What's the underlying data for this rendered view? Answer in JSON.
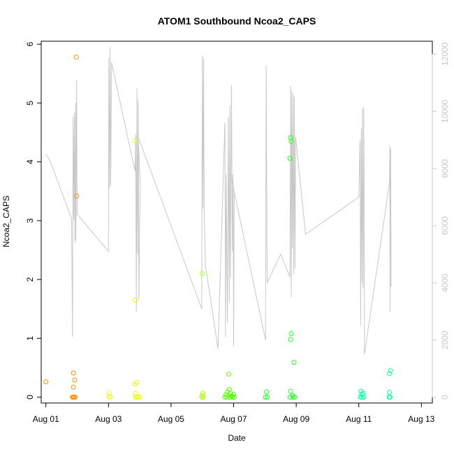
{
  "chart_data": {
    "type": "scatter",
    "title": "ATOM1 Southbound Ncoa2_CAPS",
    "xlabel": "Date",
    "ylabel": "Ncoa2_CAPS",
    "xlim": [
      -0.15,
      12.35
    ],
    "ylim": [
      -0.1,
      6.05
    ],
    "y_ticks": [
      0,
      1,
      2,
      3,
      4,
      5,
      6
    ],
    "x_ticks": [
      {
        "value": 0,
        "label": "Aug 01"
      },
      {
        "value": 2,
        "label": "Aug 03"
      },
      {
        "value": 4,
        "label": "Aug 05"
      },
      {
        "value": 6,
        "label": "Aug 07"
      },
      {
        "value": 8,
        "label": "Aug 09"
      },
      {
        "value": 10,
        "label": "Aug 11"
      },
      {
        "value": 12,
        "label": "Aug 13"
      }
    ],
    "secondary_axis": {
      "ylim": [
        -200,
        12450
      ],
      "ticks": [
        0,
        2000,
        4000,
        6000,
        8000,
        10000,
        12000
      ],
      "color": "#c8c8c8"
    },
    "grid": false,
    "series": [
      {
        "color": "#ff8c00",
        "points": [
          [
            0.0,
            0.26
          ],
          [
            0.88,
            0.41
          ],
          [
            0.88,
            0.17
          ],
          [
            0.92,
            0.29
          ],
          [
            0.97,
            5.78
          ],
          [
            0.98,
            3.42
          ],
          [
            0.85,
            0.0
          ],
          [
            0.88,
            0.0
          ],
          [
            0.9,
            0.0
          ],
          [
            0.94,
            0.0
          ]
        ]
      },
      {
        "color": "#e6ff00",
        "points": [
          [
            2.02,
            0.08
          ],
          [
            2.02,
            0.01
          ],
          [
            2.05,
            0.0
          ],
          [
            2.84,
            4.36
          ],
          [
            2.85,
            1.65
          ],
          [
            2.84,
            0.22
          ],
          [
            2.86,
            0.06
          ],
          [
            2.91,
            0.25
          ],
          [
            2.87,
            0.0
          ],
          [
            2.92,
            0.0
          ],
          [
            2.96,
            0.0
          ],
          [
            3.0,
            0.0
          ]
        ]
      },
      {
        "color": "#a8ff00",
        "points": [
          [
            5.0,
            2.1
          ],
          [
            5.02,
            0.07
          ],
          [
            5.0,
            0.03
          ],
          [
            4.98,
            0.0
          ],
          [
            5.03,
            0.0
          ]
        ]
      },
      {
        "color": "#55ff00",
        "points": [
          [
            5.72,
            0.0
          ],
          [
            5.75,
            0.04
          ],
          [
            5.8,
            0.09
          ],
          [
            5.84,
            0.39
          ],
          [
            5.86,
            0.13
          ],
          [
            5.9,
            0.07
          ],
          [
            5.93,
            0.02
          ],
          [
            5.97,
            0.01
          ],
          [
            6.0,
            0.05
          ],
          [
            5.78,
            0.0
          ],
          [
            5.88,
            0.0
          ],
          [
            5.96,
            0.0
          ],
          [
            6.02,
            0.0
          ]
        ]
      },
      {
        "color": "#22ff22",
        "points": [
          [
            7.05,
            0.09
          ],
          [
            7.02,
            0.0
          ],
          [
            7.08,
            0.0
          ],
          [
            7.82,
            4.41
          ],
          [
            7.84,
            4.35
          ],
          [
            7.8,
            4.06
          ],
          [
            7.84,
            1.08
          ],
          [
            7.82,
            0.98
          ],
          [
            7.93,
            0.59
          ],
          [
            7.82,
            0.1
          ],
          [
            7.88,
            0.03
          ],
          [
            7.9,
            0.0
          ],
          [
            7.96,
            0.0
          ],
          [
            7.8,
            0.0
          ]
        ]
      },
      {
        "color": "#00ff99",
        "points": [
          [
            10.07,
            0.1
          ],
          [
            10.1,
            0.05
          ],
          [
            10.14,
            0.07
          ],
          [
            10.05,
            0.0
          ],
          [
            10.1,
            0.0
          ],
          [
            10.16,
            0.0
          ],
          [
            10.98,
            0.4
          ],
          [
            11.02,
            0.45
          ],
          [
            10.98,
            0.08
          ],
          [
            11.0,
            0.0
          ],
          [
            10.97,
            0.0
          ]
        ]
      }
    ],
    "line_series": {
      "color": "#c8c8c8",
      "axis": "secondary",
      "points": [
        [
          0.0,
          8500
        ],
        [
          0.12,
          8300
        ],
        [
          0.82,
          6250
        ],
        [
          0.85,
          2100
        ],
        [
          0.87,
          9800
        ],
        [
          0.89,
          6200
        ],
        [
          0.91,
          9950
        ],
        [
          0.93,
          5400
        ],
        [
          0.95,
          10300
        ],
        [
          0.96,
          5500
        ],
        [
          0.98,
          11100
        ],
        [
          1.0,
          6400
        ],
        [
          2.0,
          5100
        ],
        [
          2.01,
          11850
        ],
        [
          2.03,
          7300
        ],
        [
          2.05,
          12250
        ],
        [
          2.07,
          7400
        ],
        [
          2.1,
          11700
        ],
        [
          2.85,
          7900
        ],
        [
          2.87,
          9200
        ],
        [
          2.89,
          3000
        ],
        [
          2.91,
          10800
        ],
        [
          2.93,
          5000
        ],
        [
          2.95,
          10400
        ],
        [
          2.97,
          3400
        ],
        [
          3.0,
          6400
        ],
        [
          3.02,
          7300
        ],
        [
          2.95,
          9100
        ],
        [
          4.98,
          3100
        ],
        [
          5.0,
          11950
        ],
        [
          5.02,
          6600
        ],
        [
          5.04,
          11850
        ],
        [
          5.06,
          6400
        ],
        [
          5.1,
          4600
        ],
        [
          5.5,
          1700
        ],
        [
          5.72,
          9600
        ],
        [
          5.74,
          2100
        ],
        [
          5.76,
          7800
        ],
        [
          5.8,
          2600
        ],
        [
          5.83,
          9800
        ],
        [
          5.86,
          3300
        ],
        [
          5.88,
          10200
        ],
        [
          5.9,
          4200
        ],
        [
          5.93,
          10900
        ],
        [
          5.96,
          5100
        ],
        [
          5.98,
          7800
        ],
        [
          6.0,
          1800
        ],
        [
          6.02,
          7200
        ],
        [
          5.9,
          7800
        ],
        [
          7.02,
          2000
        ],
        [
          7.04,
          11600
        ],
        [
          7.07,
          4000
        ],
        [
          7.5,
          5000
        ],
        [
          7.8,
          4200
        ],
        [
          7.82,
          10900
        ],
        [
          7.84,
          3500
        ],
        [
          7.86,
          10700
        ],
        [
          7.88,
          5200
        ],
        [
          7.9,
          10600
        ],
        [
          7.92,
          4300
        ],
        [
          7.94,
          10500
        ],
        [
          7.96,
          4500
        ],
        [
          7.98,
          9100
        ],
        [
          8.3,
          5700
        ],
        [
          10.0,
          7000
        ],
        [
          10.04,
          9000
        ],
        [
          10.06,
          2500
        ],
        [
          10.08,
          9400
        ],
        [
          10.1,
          4000
        ],
        [
          10.12,
          10100
        ],
        [
          10.14,
          3800
        ],
        [
          10.16,
          10150
        ],
        [
          10.18,
          1500
        ],
        [
          10.98,
          7500
        ],
        [
          10.99,
          8800
        ],
        [
          11.0,
          3000
        ],
        [
          11.02,
          8700
        ],
        [
          11.03,
          3900
        ],
        [
          10.98,
          4000
        ]
      ]
    }
  }
}
